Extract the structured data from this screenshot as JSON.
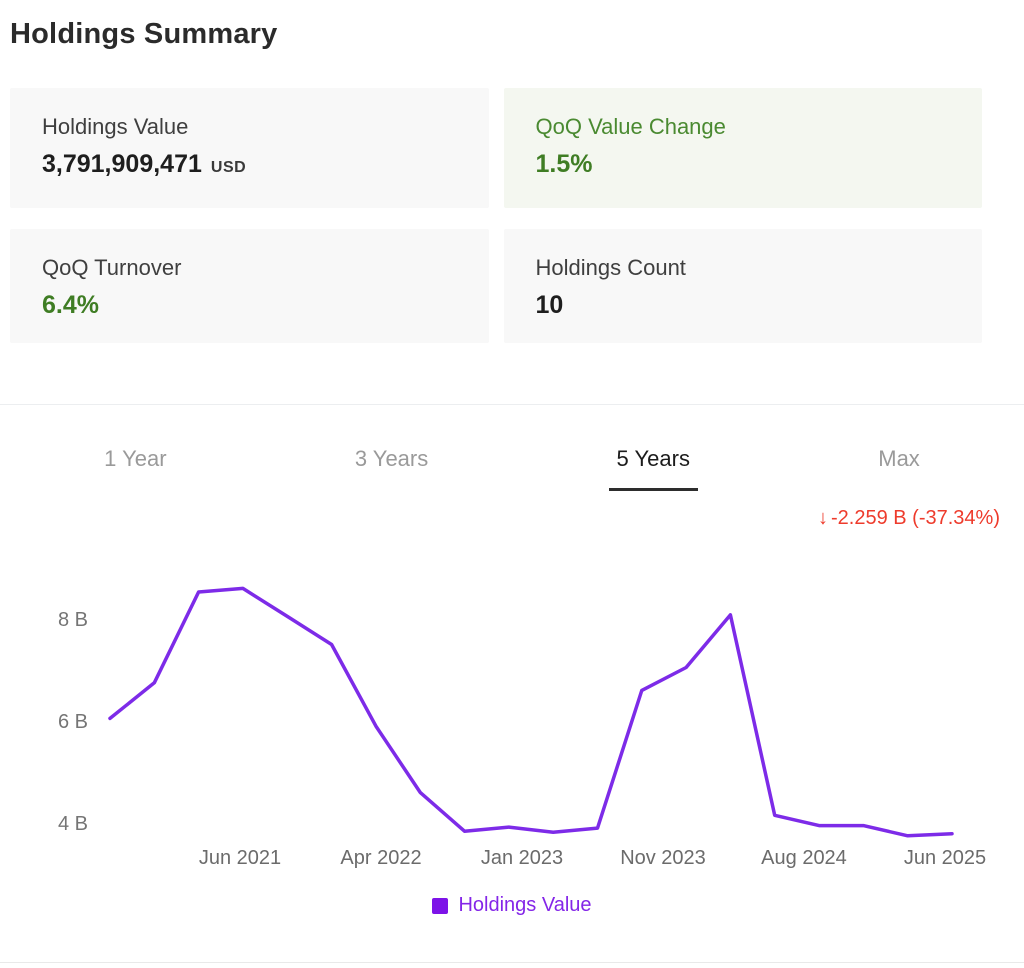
{
  "page": {
    "title": "Holdings Summary"
  },
  "cards": [
    {
      "label": "Holdings Value",
      "value": "3,791,909,471",
      "unit": "USD"
    },
    {
      "label": "QoQ Value Change",
      "value": "1.5%"
    },
    {
      "label": "QoQ Turnover",
      "value": "6.4%"
    },
    {
      "label": "Holdings Count",
      "value": "10"
    }
  ],
  "tabs": {
    "items": [
      {
        "label": "1 Year"
      },
      {
        "label": "3 Years"
      },
      {
        "label": "5 Years"
      },
      {
        "label": "Max"
      }
    ],
    "active_index": 2
  },
  "change_indicator": {
    "arrow": "↓",
    "text": "-2.259 B (-37.34%)"
  },
  "legend": {
    "label": "Holdings Value"
  },
  "colors": {
    "line_purple": "#7d2be8",
    "legend_purple": "#8426e8",
    "positive_green": "#3f7d24",
    "negative_red": "#ee3b2c",
    "card_gray_bg": "#f8f8f8",
    "card_green_bg": "#f4f7f0"
  },
  "chart_data": {
    "type": "line",
    "title": "Holdings Value over 5 Years",
    "unit": "B (billions USD)",
    "series": [
      {
        "name": "Holdings Value",
        "values": [
          6.05,
          6.75,
          8.53,
          8.6,
          8.05,
          7.5,
          5.9,
          4.6,
          3.84,
          3.92,
          3.82,
          3.9,
          6.6,
          7.05,
          8.08,
          4.15,
          3.95,
          3.95,
          3.75,
          3.79
        ]
      }
    ],
    "x_tick_labels": [
      "Jun 2021",
      "Apr 2022",
      "Jan 2023",
      "Nov 2023",
      "Aug 2024",
      "Jun 2025"
    ],
    "y_tick_labels": [
      "4 B",
      "6 B",
      "8 B"
    ],
    "y_ticks": [
      4,
      6,
      8
    ],
    "ylim": [
      3.5,
      9.0
    ],
    "grid": false,
    "legend_position": "bottom",
    "period_selected": "5 Years",
    "change_over_period": "-2.259 B (-37.34%)"
  }
}
